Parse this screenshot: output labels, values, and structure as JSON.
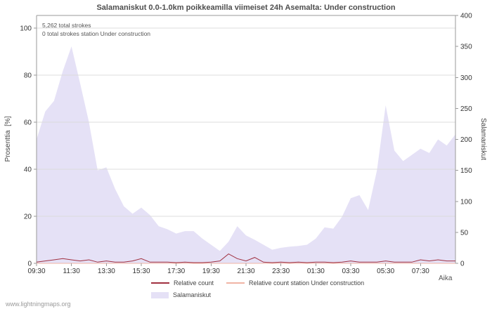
{
  "title": "Salamaniskut 0.0-1.0km poikkeamilla viimeiset 24h Asemalta: Under construction",
  "watermark": "www.lightningmaps.org",
  "annotations": {
    "total_strokes": "5,262 total strokes",
    "station_strokes": "0 total strokes station Under construction"
  },
  "axes": {
    "left_label": "Prosenttia  [%]",
    "right_label": "Salamaniskut",
    "x_label": "Aika",
    "left_ticks": [
      0,
      20,
      40,
      60,
      80,
      100
    ],
    "right_ticks": [
      0,
      50,
      100,
      150,
      200,
      250,
      300,
      350,
      400
    ],
    "x_tick_labels": [
      "09:30",
      "11:30",
      "13:30",
      "15:30",
      "17:30",
      "19:30",
      "21:30",
      "23:30",
      "01:30",
      "03:30",
      "05:30",
      "07:30"
    ]
  },
  "legend": [
    {
      "label": "Relative count",
      "type": "line",
      "color": "#a03040"
    },
    {
      "label": "Relative count station Under construction",
      "type": "line",
      "color": "#f0b4a4"
    },
    {
      "label": "Salamaniskut",
      "type": "area",
      "color": "#e5e1f6"
    }
  ],
  "chart_data": {
    "type": "area",
    "title": "Salamaniskut 0.0-1.0km poikkeamilla viimeiset 24h Asemalta: Under construction",
    "xlabel": "Aika",
    "ylabel_left": "Prosenttia [%]",
    "ylabel_right": "Salamaniskut",
    "left_ylim": [
      0,
      100
    ],
    "right_ylim": [
      0,
      400
    ],
    "grid": true,
    "legend_position": "bottom",
    "times": [
      "09:30",
      "10:00",
      "10:30",
      "11:00",
      "11:30",
      "12:00",
      "12:30",
      "13:00",
      "13:30",
      "14:00",
      "14:30",
      "15:00",
      "15:30",
      "16:00",
      "16:30",
      "17:00",
      "17:30",
      "18:00",
      "18:30",
      "19:00",
      "19:30",
      "20:00",
      "20:30",
      "21:00",
      "21:30",
      "22:00",
      "22:30",
      "23:00",
      "23:30",
      "00:00",
      "00:30",
      "01:00",
      "01:30",
      "02:00",
      "02:30",
      "03:00",
      "03:30",
      "04:00",
      "04:30",
      "05:00",
      "05:30",
      "06:00",
      "06:30",
      "07:00",
      "07:30",
      "08:00",
      "08:30",
      "09:00",
      "09:30"
    ],
    "series": [
      {
        "name": "Salamaniskut",
        "axis": "right",
        "type": "area",
        "color": "#e5e1f6",
        "values": [
          200,
          245,
          262,
          310,
          350,
          290,
          228,
          150,
          155,
          120,
          92,
          80,
          90,
          78,
          60,
          55,
          48,
          52,
          52,
          40,
          30,
          20,
          35,
          60,
          45,
          38,
          30,
          22,
          25,
          27,
          28,
          30,
          40,
          58,
          56,
          75,
          105,
          110,
          86,
          150,
          255,
          182,
          165,
          175,
          185,
          178,
          200,
          190,
          208
        ]
      },
      {
        "name": "Relative count",
        "axis": "left",
        "type": "line",
        "color": "#a03040",
        "values": [
          0.5,
          1,
          1.5,
          2,
          1.5,
          1,
          1.5,
          0.5,
          1,
          0.5,
          0.5,
          1,
          2,
          0.5,
          0.5,
          0.5,
          0.3,
          0.5,
          0.3,
          0.3,
          0.5,
          1,
          4,
          2,
          1,
          2.5,
          0.5,
          0.3,
          0.5,
          0.3,
          0.5,
          0.3,
          0.5,
          0.5,
          0.3,
          0.5,
          1,
          0.5,
          0.5,
          0.5,
          1,
          0.5,
          0.5,
          0.5,
          1.5,
          1,
          1.5,
          1,
          1
        ]
      },
      {
        "name": "Relative count station Under construction",
        "axis": "left",
        "type": "line",
        "color": "#f0b4a4",
        "values": [
          0,
          0,
          0,
          0,
          0,
          0,
          0,
          0,
          0,
          0,
          0,
          0,
          0,
          0,
          0,
          0,
          0,
          0,
          0,
          0,
          0,
          0,
          0,
          0,
          0,
          0,
          0,
          0,
          0,
          0,
          0,
          0,
          0,
          0,
          0,
          0,
          0,
          0,
          0,
          0,
          0,
          0,
          0,
          0,
          0,
          0,
          0,
          0,
          0
        ]
      }
    ]
  }
}
